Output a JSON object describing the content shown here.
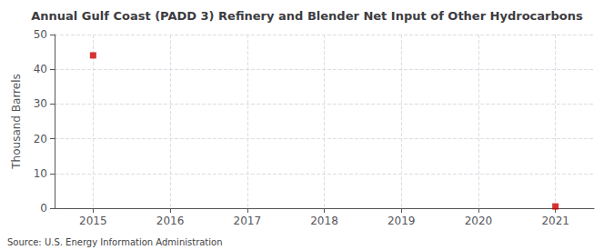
{
  "chart_data": {
    "type": "scatter",
    "title": "Annual Gulf Coast (PADD 3) Refinery and Blender Net Input of Other Hydrocarbons",
    "ylabel": "Thousand Barrels",
    "annotations": [
      "Source: U.S. Energy Information Administration"
    ],
    "x": [
      2015,
      2021
    ],
    "values": [
      44,
      0.5
    ],
    "color": "#cc0000",
    "marker": "square",
    "xlim": [
      2014.5,
      2021.5
    ],
    "xticks": [
      2015,
      2016,
      2017,
      2018,
      2019,
      2020,
      2021
    ],
    "ylim": [
      0,
      50
    ],
    "yticks": [
      0,
      10,
      20,
      30,
      40,
      50
    ],
    "grid": true
  }
}
